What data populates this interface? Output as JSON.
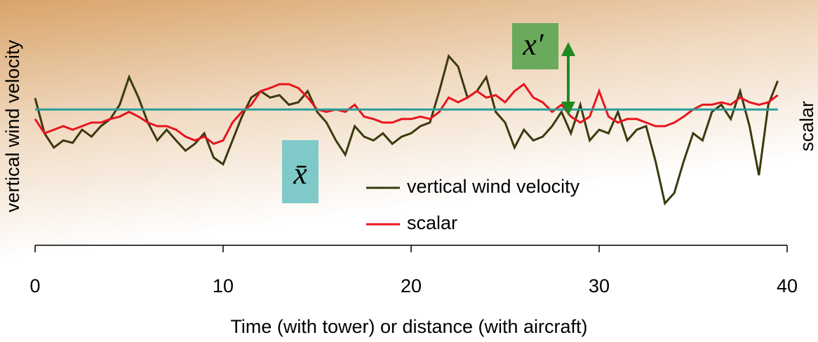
{
  "chart_data": {
    "type": "line",
    "x_label": "Time (with tower) or distance (with aircraft)",
    "y_label": "vertical wind velocity",
    "y2_label": "scalar",
    "mean_label": "x̄",
    "fluctuation_label": "x′",
    "mean": 57,
    "mean_color": "#2a9d9a",
    "x": [
      0,
      0.5,
      1,
      1.5,
      2,
      2.5,
      3,
      3.5,
      4,
      4.5,
      5,
      5.5,
      6,
      6.5,
      7,
      7.5,
      8,
      8.5,
      9,
      9.5,
      10,
      10.5,
      11,
      11.5,
      12,
      12.5,
      13,
      13.5,
      14,
      14.5,
      15,
      15.5,
      16,
      16.5,
      17,
      17.5,
      18,
      18.5,
      19,
      19.5,
      20,
      20.5,
      21,
      21.5,
      22,
      22.5,
      23,
      23.5,
      24,
      24.5,
      25,
      25.5,
      26,
      26.5,
      27,
      27.5,
      28,
      28.5,
      29,
      29.5,
      30,
      30.5,
      31,
      31.5,
      32,
      32.5,
      33,
      33.5,
      34,
      34.5,
      35,
      35.5,
      36,
      36.5,
      37,
      37.5,
      38,
      38.5,
      39,
      39.5
    ],
    "series": [
      {
        "name": "vertical wind velocity",
        "color": "#3b3a0e",
        "values": [
          61.8,
          47,
          41,
          44,
          43,
          48.5,
          45.6,
          50,
          53,
          59,
          70.6,
          62,
          51.5,
          44,
          48.5,
          44,
          39.7,
          42.6,
          47,
          36.8,
          34,
          44,
          54,
          62,
          64.7,
          62,
          63,
          59,
          60,
          64.7,
          56,
          51.5,
          44,
          38,
          50,
          45.6,
          44,
          47,
          42.6,
          45.6,
          47,
          50,
          51.5,
          64.7,
          79.4,
          75,
          62,
          64.7,
          70.6,
          56,
          51.5,
          41,
          48.5,
          44,
          45.6,
          50,
          56,
          47,
          59,
          44,
          48.5,
          47,
          56,
          44,
          48.5,
          50,
          35.3,
          17.6,
          22,
          35.3,
          47,
          44,
          56,
          59,
          53,
          64.7,
          50,
          29.4,
          59,
          69
        ]
      },
      {
        "name": "scalar",
        "color": "#e8141c",
        "values": [
          53,
          47,
          48.5,
          50,
          48.5,
          50,
          51.5,
          51.5,
          53,
          54,
          56,
          54,
          51.5,
          50,
          50,
          48.5,
          45.6,
          44,
          45.6,
          42.6,
          44,
          51.5,
          56,
          59,
          64.7,
          66,
          67.6,
          67.6,
          66,
          62,
          57,
          56,
          57,
          56,
          59,
          54,
          53,
          51.5,
          51.5,
          53,
          53,
          54,
          53,
          56,
          62,
          60,
          62,
          64.7,
          62,
          63,
          60,
          64.7,
          67.6,
          62,
          60,
          56,
          59,
          54,
          51.5,
          54,
          64.7,
          54,
          51.5,
          53,
          53,
          51.5,
          50,
          50,
          51.5,
          54,
          57,
          59,
          59,
          60,
          59,
          62,
          60,
          59,
          60,
          63
        ]
      }
    ],
    "xlim": [
      0,
      40
    ],
    "ylim": [
      0,
      100
    ],
    "xticks": [
      0,
      10,
      20,
      30,
      40
    ]
  }
}
